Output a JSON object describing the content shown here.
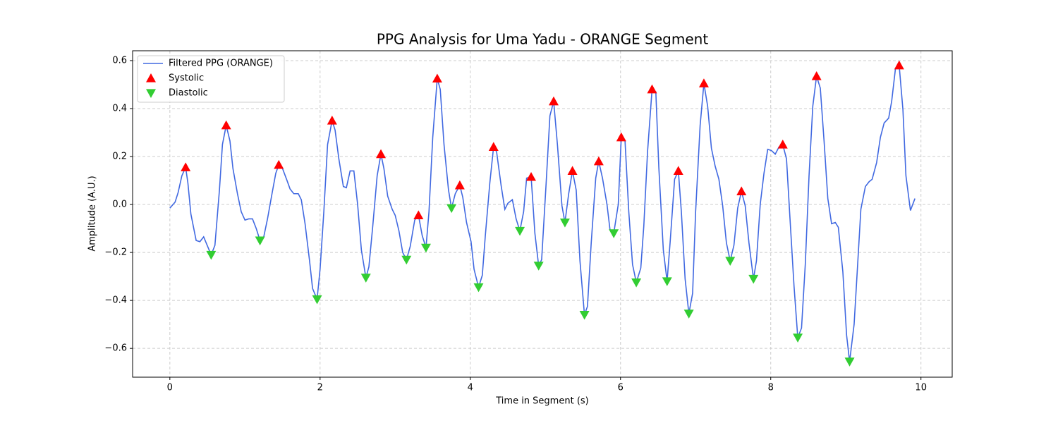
{
  "chart_data": {
    "type": "line",
    "title": "PPG Analysis for Uma Yadu - ORANGE Segment",
    "xlabel": "Time in Segment (s)",
    "ylabel": "Amplitude (A.U.)",
    "xlim": [
      -0.496,
      10.416
    ],
    "ylim": [
      -0.72,
      0.641
    ],
    "xticks": [
      0,
      2,
      4,
      6,
      8,
      10
    ],
    "yticks": [
      {
        "value": -0.6,
        "label": "−0.6"
      },
      {
        "value": -0.4,
        "label": "−0.4"
      },
      {
        "value": -0.2,
        "label": "−0.2"
      },
      {
        "value": 0,
        "label": "0.0"
      },
      0.2,
      0.4,
      0.6
    ],
    "grid": true,
    "legend": "upper left",
    "series": [
      {
        "name": "Filtered PPG (ORANGE)",
        "kind": "line",
        "color": "#4169e1",
        "x": [
          0,
          0.07,
          0.11,
          0.16,
          0.21,
          0.24,
          0.28,
          0.35,
          0.4,
          0.45,
          0.51,
          0.55,
          0.6,
          0.66,
          0.7,
          0.75,
          0.8,
          0.84,
          0.9,
          0.95,
          1.0,
          1.05,
          1.1,
          1.15,
          1.2,
          1.25,
          1.3,
          1.36,
          1.41,
          1.45,
          1.5,
          1.56,
          1.6,
          1.65,
          1.71,
          1.75,
          1.8,
          1.86,
          1.9,
          1.96,
          2.0,
          2.05,
          2.1,
          2.16,
          2.2,
          2.25,
          2.31,
          2.35,
          2.4,
          2.45,
          2.5,
          2.55,
          2.61,
          2.65,
          2.7,
          2.76,
          2.81,
          2.85,
          2.9,
          2.96,
          3.0,
          3.05,
          3.1,
          3.15,
          3.2,
          3.26,
          3.31,
          3.36,
          3.41,
          3.45,
          3.5,
          3.56,
          3.6,
          3.65,
          3.71,
          3.75,
          3.8,
          3.86,
          3.9,
          3.95,
          4.01,
          4.05,
          4.11,
          4.16,
          4.2,
          4.26,
          4.31,
          4.35,
          4.41,
          4.46,
          4.5,
          4.56,
          4.61,
          4.66,
          4.71,
          4.75,
          4.81,
          4.86,
          4.91,
          4.95,
          5.01,
          5.06,
          5.11,
          5.16,
          5.22,
          5.26,
          5.31,
          5.36,
          5.41,
          5.46,
          5.52,
          5.56,
          5.61,
          5.67,
          5.71,
          5.76,
          5.82,
          5.86,
          5.91,
          5.97,
          6.01,
          6.06,
          6.11,
          6.16,
          6.21,
          6.27,
          6.31,
          6.36,
          6.42,
          6.47,
          6.51,
          6.57,
          6.62,
          6.66,
          6.72,
          6.77,
          6.81,
          6.86,
          6.91,
          6.96,
          7.0,
          7.06,
          7.11,
          7.16,
          7.21,
          7.26,
          7.31,
          7.36,
          7.41,
          7.46,
          7.51,
          7.56,
          7.61,
          7.66,
          7.71,
          7.77,
          7.81,
          7.86,
          7.91,
          7.96,
          8.01,
          8.06,
          8.11,
          8.16,
          8.21,
          8.25,
          8.31,
          8.36,
          8.41,
          8.46,
          8.51,
          8.56,
          8.61,
          8.66,
          8.71,
          8.76,
          8.81,
          8.86,
          8.9,
          8.96,
          9.01,
          9.05,
          9.11,
          9.16,
          9.2,
          9.26,
          9.31,
          9.35,
          9.41,
          9.46,
          9.51,
          9.57,
          9.61,
          9.66,
          9.71,
          9.76,
          9.8,
          9.86,
          9.92
        ],
        "values": [
          -0.015,
          0.01,
          0.05,
          0.12,
          0.155,
          0.09,
          -0.04,
          -0.15,
          -0.155,
          -0.135,
          -0.18,
          -0.21,
          -0.17,
          0.06,
          0.25,
          0.33,
          0.265,
          0.15,
          0.045,
          -0.03,
          -0.065,
          -0.06,
          -0.06,
          -0.1,
          -0.15,
          -0.135,
          -0.06,
          0.045,
          0.13,
          0.165,
          0.15,
          0.1,
          0.065,
          0.045,
          0.045,
          0.02,
          -0.08,
          -0.235,
          -0.35,
          -0.395,
          -0.27,
          -0.03,
          0.25,
          0.35,
          0.31,
          0.19,
          0.075,
          0.07,
          0.14,
          0.14,
          0.0,
          -0.19,
          -0.305,
          -0.26,
          -0.095,
          0.12,
          0.21,
          0.15,
          0.035,
          -0.02,
          -0.045,
          -0.11,
          -0.2,
          -0.23,
          -0.175,
          -0.065,
          -0.045,
          -0.13,
          -0.18,
          -0.03,
          0.28,
          0.525,
          0.48,
          0.25,
          0.06,
          -0.015,
          0.045,
          0.08,
          0.03,
          -0.075,
          -0.155,
          -0.27,
          -0.345,
          -0.295,
          -0.13,
          0.09,
          0.24,
          0.22,
          0.08,
          -0.02,
          0.005,
          0.02,
          -0.06,
          -0.11,
          -0.03,
          0.11,
          0.115,
          -0.12,
          -0.255,
          -0.23,
          0.09,
          0.37,
          0.43,
          0.25,
          -0.005,
          -0.075,
          0.045,
          0.14,
          0.06,
          -0.235,
          -0.46,
          -0.425,
          -0.16,
          0.11,
          0.18,
          0.11,
          0.0,
          -0.105,
          -0.12,
          0.0,
          0.28,
          0.265,
          -0.03,
          -0.25,
          -0.325,
          -0.265,
          -0.09,
          0.22,
          0.48,
          0.47,
          0.155,
          -0.19,
          -0.32,
          -0.16,
          0.105,
          0.14,
          -0.03,
          -0.31,
          -0.455,
          -0.37,
          -0.03,
          0.33,
          0.505,
          0.41,
          0.235,
          0.16,
          0.105,
          -0.005,
          -0.16,
          -0.235,
          -0.17,
          -0.015,
          0.055,
          -0.005,
          -0.16,
          -0.31,
          -0.235,
          0.0,
          0.13,
          0.23,
          0.225,
          0.21,
          0.24,
          0.25,
          0.19,
          -0.025,
          -0.34,
          -0.555,
          -0.515,
          -0.25,
          0.12,
          0.41,
          0.535,
          0.485,
          0.265,
          0.025,
          -0.08,
          -0.075,
          -0.095,
          -0.28,
          -0.545,
          -0.655,
          -0.5,
          -0.235,
          -0.02,
          0.075,
          0.095,
          0.105,
          0.175,
          0.28,
          0.34,
          0.36,
          0.43,
          0.565,
          0.58,
          0.395,
          0.12,
          -0.025,
          0.025
        ]
      },
      {
        "name": "Systolic",
        "kind": "scatter",
        "marker": "triangle-up",
        "color": "#ff0000",
        "x": [
          0.21,
          0.75,
          1.45,
          2.16,
          2.81,
          3.31,
          3.56,
          3.86,
          4.31,
          4.81,
          5.11,
          5.36,
          5.71,
          6.01,
          6.42,
          6.77,
          7.11,
          7.61,
          8.16,
          8.61,
          9.71
        ],
        "values": [
          0.155,
          0.33,
          0.165,
          0.35,
          0.21,
          -0.045,
          0.525,
          0.08,
          0.24,
          0.115,
          0.43,
          0.14,
          0.18,
          0.28,
          0.48,
          0.14,
          0.505,
          0.055,
          0.25,
          0.535,
          0.58
        ]
      },
      {
        "name": "Diastolic",
        "kind": "scatter",
        "marker": "triangle-down",
        "color": "#32cd32",
        "x": [
          0.55,
          1.2,
          1.96,
          2.61,
          3.15,
          3.41,
          3.75,
          4.11,
          4.66,
          4.91,
          5.26,
          5.52,
          5.91,
          6.21,
          6.62,
          6.91,
          7.46,
          7.77,
          8.36,
          9.05
        ],
        "values": [
          -0.21,
          -0.15,
          -0.395,
          -0.305,
          -0.23,
          -0.18,
          -0.015,
          -0.345,
          -0.11,
          -0.255,
          -0.075,
          -0.46,
          -0.12,
          -0.325,
          -0.32,
          -0.455,
          -0.235,
          -0.31,
          -0.555,
          -0.655
        ]
      }
    ]
  }
}
